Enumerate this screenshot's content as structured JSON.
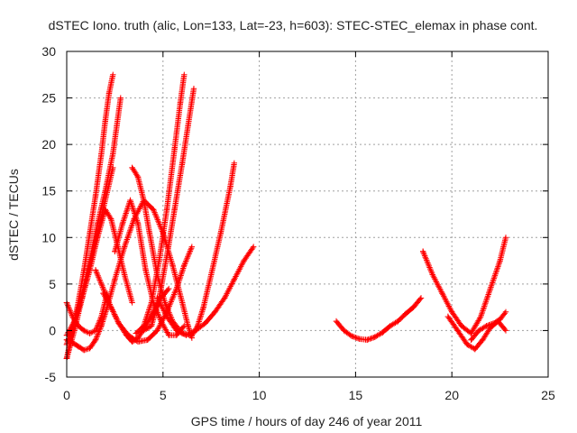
{
  "chart_data": {
    "type": "scatter",
    "title": "dSTEC Iono. truth (alic, Lon=133, Lat=-23, h=603): STEC-STEC_elemax in phase cont.",
    "xlabel": "GPS time / hours of day 246 of year 2011",
    "ylabel": "dSTEC  / TECUs",
    "xlim": [
      0,
      25
    ],
    "ylim": [
      -5,
      30
    ],
    "xticks": [
      "0",
      "5",
      "10",
      "15",
      "20",
      "25"
    ],
    "yticks": [
      "-5",
      "0",
      "5",
      "10",
      "15",
      "20",
      "25",
      "30"
    ],
    "grid": true,
    "marker": "plus",
    "color": "#ff0000",
    "series": [
      {
        "x": [
          0.0,
          0.3,
          0.6,
          0.9,
          1.2,
          1.5,
          1.8,
          2.0,
          2.2,
          2.4
        ],
        "y": [
          -3.0,
          0.0,
          3.0,
          6.5,
          10.5,
          14.5,
          19.0,
          22.5,
          25.5,
          27.5
        ]
      },
      {
        "x": [
          0.0,
          0.4,
          0.8,
          1.2,
          1.6,
          2.0,
          2.4,
          2.6,
          2.8
        ],
        "y": [
          -1.5,
          1.0,
          4.0,
          7.5,
          11.5,
          15.0,
          19.0,
          22.0,
          25.0
        ]
      },
      {
        "x": [
          0.0,
          0.4,
          0.8,
          1.2,
          1.6,
          2.0,
          2.4
        ],
        "y": [
          -3.0,
          0.0,
          3.5,
          7.0,
          10.5,
          14.0,
          17.5
        ]
      },
      {
        "x": [
          0.0,
          0.3,
          0.6,
          0.9,
          1.2,
          1.5,
          1.8,
          2.1
        ],
        "y": [
          3.0,
          1.5,
          0.5,
          0.0,
          -0.3,
          0.0,
          1.5,
          4.0
        ]
      },
      {
        "x": [
          0.0,
          0.3,
          0.6,
          0.9,
          1.2,
          1.5,
          1.8,
          2.1,
          2.5,
          3.0,
          3.5,
          4.0,
          4.5,
          5.0,
          5.5,
          6.0,
          6.3,
          6.5
        ],
        "y": [
          -1.0,
          -1.3,
          -1.7,
          -2.1,
          -1.9,
          -1.0,
          0.5,
          2.5,
          5.5,
          9.0,
          12.0,
          14.0,
          13.0,
          10.5,
          7.0,
          3.0,
          0.5,
          -0.8
        ]
      },
      {
        "x": [
          0.0,
          0.4,
          0.8,
          1.2,
          1.6,
          2.0,
          2.3,
          2.6,
          3.0,
          3.4
        ],
        "y": [
          -0.5,
          1.0,
          3.5,
          6.5,
          10.0,
          13.0,
          12.0,
          9.5,
          6.0,
          3.0
        ]
      },
      {
        "x": [
          1.5,
          1.9,
          2.3,
          2.7,
          3.1,
          3.4,
          3.7,
          4.1,
          4.5,
          4.9,
          5.3
        ],
        "y": [
          6.5,
          4.5,
          2.5,
          0.8,
          -0.5,
          -1.2,
          -0.8,
          0.5,
          2.0,
          3.5,
          4.5
        ]
      },
      {
        "x": [
          1.9,
          2.3,
          2.7,
          3.2,
          3.7,
          4.2,
          4.7,
          5.2,
          5.7,
          6.1,
          6.5
        ],
        "y": [
          4.0,
          2.5,
          0.8,
          -0.5,
          -1.2,
          -1.0,
          0.0,
          2.0,
          4.5,
          7.0,
          9.0
        ]
      },
      {
        "x": [
          2.5,
          2.9,
          3.3,
          3.7,
          4.1,
          4.5,
          4.9,
          5.3,
          5.7,
          6.1
        ],
        "y": [
          8.5,
          11.5,
          14.0,
          11.5,
          6.5,
          3.0,
          1.0,
          -0.5,
          -0.5,
          0.5
        ]
      },
      {
        "x": [
          3.4,
          3.7,
          4.0,
          4.3,
          4.7,
          5.1,
          5.5,
          6.0,
          6.5,
          6.8,
          7.1,
          7.5,
          8.0,
          8.5,
          8.7
        ],
        "y": [
          17.5,
          16.5,
          14.0,
          10.5,
          6.0,
          3.0,
          1.0,
          -0.3,
          -0.5,
          0.5,
          2.5,
          6.0,
          10.5,
          15.5,
          18.0
        ]
      },
      {
        "x": [
          3.6,
          4.0,
          4.4,
          4.8,
          5.2,
          5.6,
          5.9,
          6.1
        ],
        "y": [
          -0.3,
          0.5,
          3.0,
          7.5,
          13.0,
          19.5,
          24.5,
          27.5
        ]
      },
      {
        "x": [
          4.0,
          4.4,
          4.8,
          5.2,
          5.6,
          6.0,
          6.3,
          6.6
        ],
        "y": [
          0.0,
          0.5,
          3.5,
          8.0,
          13.0,
          18.0,
          22.0,
          26.0
        ]
      },
      {
        "x": [
          4.7,
          5.2,
          5.7,
          6.2,
          6.7,
          7.2,
          7.7,
          8.2,
          8.7,
          9.2,
          9.7
        ],
        "y": [
          3.5,
          1.5,
          0.0,
          -0.5,
          0.0,
          0.8,
          2.0,
          3.5,
          5.5,
          7.5,
          9.0
        ]
      },
      {
        "x": [
          14.0,
          14.4,
          14.8,
          15.2,
          15.6,
          16.0,
          16.4,
          16.8,
          17.2,
          17.6,
          18.0,
          18.4
        ],
        "y": [
          1.0,
          0.0,
          -0.6,
          -0.9,
          -1.0,
          -0.7,
          -0.2,
          0.5,
          1.0,
          1.8,
          2.5,
          3.5
        ]
      },
      {
        "x": [
          18.5,
          19.0,
          19.5,
          20.0,
          20.5,
          21.0,
          21.5,
          22.0,
          22.5,
          22.8
        ],
        "y": [
          8.5,
          6.0,
          4.0,
          2.0,
          0.5,
          -0.3,
          1.5,
          4.5,
          7.5,
          10.0
        ]
      },
      {
        "x": [
          19.8,
          20.3,
          20.8,
          21.2,
          21.6,
          22.0,
          22.4,
          22.8
        ],
        "y": [
          1.5,
          0.0,
          -1.5,
          -2.0,
          -1.0,
          0.3,
          1.0,
          0.0
        ]
      },
      {
        "x": [
          21.0,
          21.4,
          21.8,
          22.2,
          22.5,
          22.8
        ],
        "y": [
          -1.0,
          0.0,
          0.5,
          0.8,
          1.2,
          2.0
        ]
      }
    ]
  }
}
